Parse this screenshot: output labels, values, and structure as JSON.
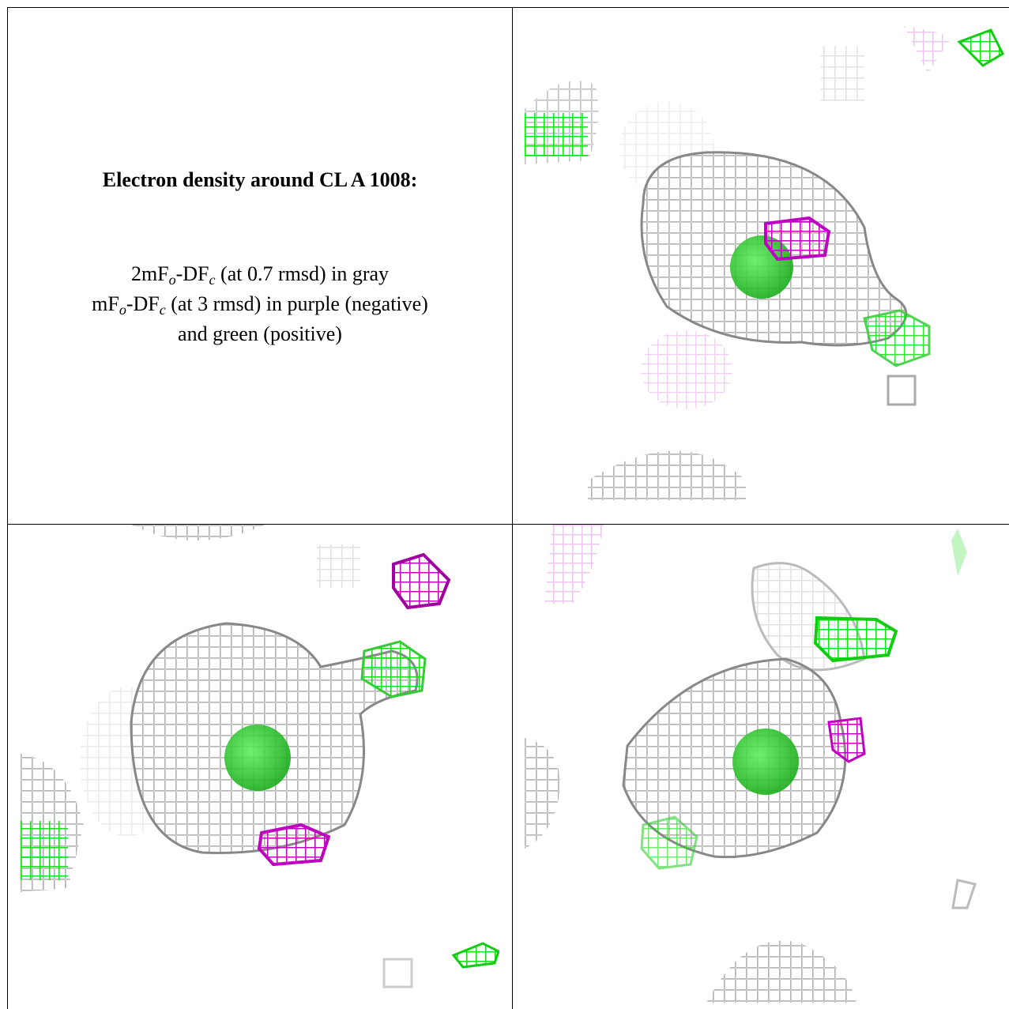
{
  "caption": {
    "title": "Electron density around CL A 1008:",
    "lines": [
      [
        {
          "text": "2mF"
        },
        {
          "text": "o",
          "sub": true
        },
        {
          "text": "-DF"
        },
        {
          "text": "c",
          "sub": true
        },
        {
          "text": " (at 0.7 rmsd) in gray"
        }
      ],
      [
        {
          "text": "mF"
        },
        {
          "text": "o",
          "sub": true
        },
        {
          "text": "-DF"
        },
        {
          "text": "c",
          "sub": true
        },
        {
          "text": " (at 3 rmsd) in purple (negative)"
        }
      ],
      [
        {
          "text": "and green (positive)"
        }
      ]
    ]
  }
}
